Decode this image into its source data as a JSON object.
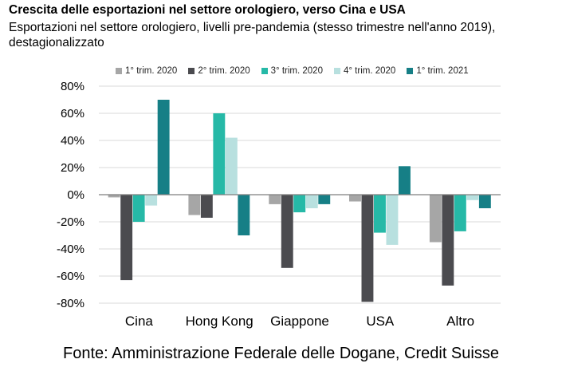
{
  "title": "Crescita delle esportazioni nel settore orologiero, verso Cina e USA",
  "subtitle": "Esportazioni nel settore orologiero, livelli pre-pandemia (stesso trimestre nell'anno 2019), destagionalizzato",
  "source": "Fonte: Amministrazione Federale delle Dogane, Credit Suisse",
  "chart_data": {
    "type": "bar",
    "categories": [
      "Cina",
      "Hong Kong",
      "Giappone",
      "USA",
      "Altro"
    ],
    "series": [
      {
        "name": "1° trim. 2020",
        "color": "#a6a6a6",
        "values": [
          -2,
          -15,
          -7,
          -5,
          -35
        ]
      },
      {
        "name": "2° trim. 2020",
        "color": "#4b4b4f",
        "values": [
          -63,
          -17,
          -54,
          -79,
          -67
        ]
      },
      {
        "name": "3° trim. 2020",
        "color": "#26b9a7",
        "values": [
          -20,
          60,
          -13,
          -28,
          -27
        ]
      },
      {
        "name": "4° trim. 2020",
        "color": "#b8e0df",
        "values": [
          -8,
          42,
          -10,
          -37,
          -4
        ]
      },
      {
        "name": "1° trim. 2021",
        "color": "#167f86",
        "values": [
          70,
          -30,
          -7,
          21,
          -10
        ]
      }
    ],
    "ylim": [
      -80,
      80
    ],
    "yticks": [
      "80%",
      "60%",
      "40%",
      "20%",
      "0%",
      "-20%",
      "-40%",
      "-60%",
      "-80%"
    ],
    "ytick_values": [
      80,
      60,
      40,
      20,
      0,
      -20,
      -40,
      -60,
      -80
    ],
    "grid": true,
    "legend": "top"
  }
}
